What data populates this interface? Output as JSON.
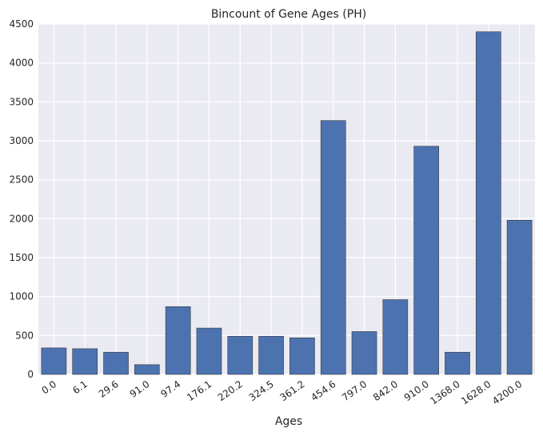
{
  "chart_data": {
    "type": "bar",
    "title": "Bincount of Gene Ages (PH)",
    "xlabel": "Ages",
    "ylabel": "",
    "categories": [
      "0.0",
      "6.1",
      "29.6",
      "91.0",
      "97.4",
      "176.1",
      "220.2",
      "324.5",
      "361.2",
      "454.6",
      "797.0",
      "842.0",
      "910.0",
      "1368.0",
      "1628.0",
      "4200.0"
    ],
    "values": [
      340,
      330,
      285,
      125,
      870,
      595,
      490,
      490,
      470,
      3260,
      550,
      960,
      2930,
      285,
      4400,
      1980
    ],
    "ylim": [
      0,
      4500
    ],
    "yticks": [
      "0",
      "500",
      "1000",
      "1500",
      "2000",
      "2500",
      "3000",
      "3500",
      "4000",
      "4500"
    ],
    "grid": true,
    "colors": {
      "bar": "#4c72b0",
      "bar_edge": "#3b3b3b",
      "background": "#eaeaf2",
      "grid": "#ffffff"
    }
  }
}
